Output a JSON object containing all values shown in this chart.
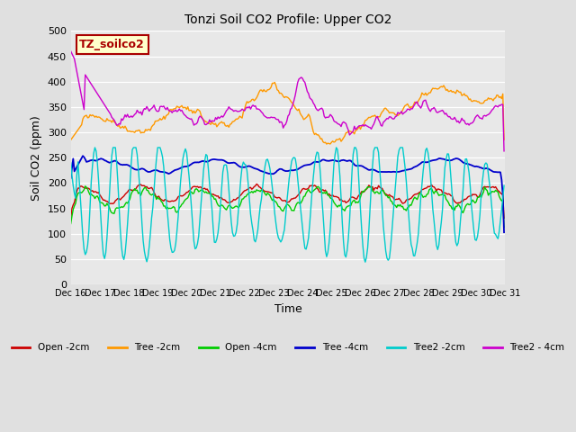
{
  "title": "Tonzi Soil CO2 Profile: Upper CO2",
  "xlabel": "Time",
  "ylabel": "Soil CO2 (ppm)",
  "ylim": [
    0,
    500
  ],
  "yticks": [
    0,
    50,
    100,
    150,
    200,
    250,
    300,
    350,
    400,
    450,
    500
  ],
  "xlim": [
    0,
    360
  ],
  "n_points": 360,
  "fig_bg_color": "#e0e0e0",
  "plot_bg_color": "#e8e8e8",
  "grid_color": "#ffffff",
  "legend_label": "TZ_soilco2",
  "legend_box_facecolor": "#ffffcc",
  "legend_box_edgecolor": "#aa0000",
  "series_colors": [
    "#cc0000",
    "#ff9900",
    "#00cc00",
    "#0000cc",
    "#00cccc",
    "#cc00cc"
  ],
  "series_labels": [
    "Open -2cm",
    "Tree -2cm",
    "Open -4cm",
    "Tree -4cm",
    "Tree2 -2cm",
    "Tree2 - 4cm"
  ],
  "xtick_labels": [
    "Dec 16",
    "Dec 17",
    "Dec 18",
    "Dec 19",
    "Dec 20",
    "Dec 21",
    "Dec 22",
    "Dec 23",
    "Dec 24",
    "Dec 25",
    "Dec 26",
    "Dec 27",
    "Dec 28",
    "Dec 29",
    "Dec 30",
    "Dec 31"
  ],
  "xtick_positions": [
    0,
    24,
    48,
    72,
    96,
    120,
    144,
    168,
    192,
    216,
    240,
    264,
    288,
    312,
    336,
    360
  ]
}
